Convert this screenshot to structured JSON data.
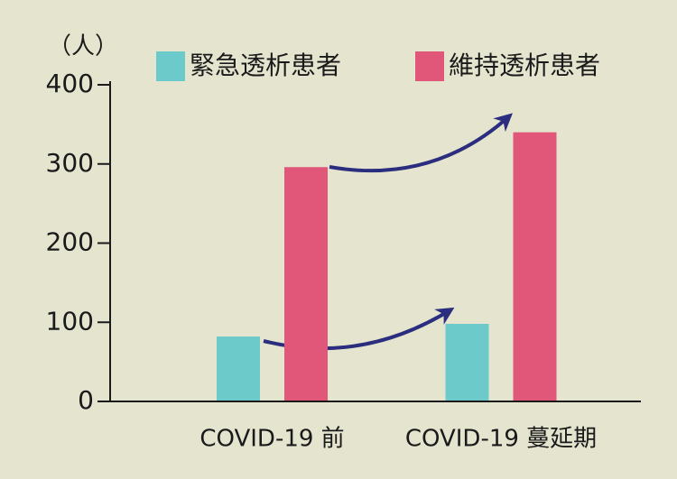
{
  "chart_data": {
    "type": "bar",
    "y_label": "（人）",
    "categories": [
      "COVID-19 前",
      "COVID-19 蔓延期"
    ],
    "series": [
      {
        "name": "緊急透析患者",
        "color": "#6ccacb",
        "values": [
          82,
          98
        ]
      },
      {
        "name": "維持透析患者",
        "color": "#e0577a",
        "values": [
          296,
          340
        ]
      }
    ],
    "ylim": [
      0,
      400
    ],
    "yticks": [
      0,
      100,
      200,
      300,
      400
    ]
  }
}
